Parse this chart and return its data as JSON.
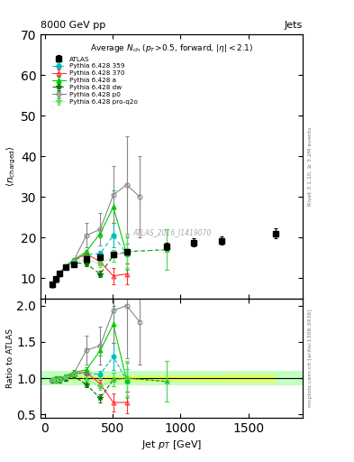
{
  "title_top_left": "8000 GeV pp",
  "title_top_right": "Jets",
  "main_title_line1": "Average N",
  "main_title_sub": "ch",
  "main_title_line2": " (p_{T}>0.5, forward, |\\eta| < 2.1)",
  "xlabel": "Jet p_{T} [GeV]",
  "ylabel_main": "\\langle n_{charged} \\rangle",
  "ylabel_ratio": "Ratio to ATLAS",
  "right_label1": "Rivet 3.1.10, \\geq 3.2M events",
  "right_label2": "mcplots.cern.ch [arXiv:1306.3436]",
  "watermark": "ATLAS_2016_I1419070",
  "atlas_x": [
    57,
    80,
    107,
    155,
    212,
    306,
    408,
    505,
    603,
    900,
    1100,
    1300,
    1700
  ],
  "atlas_y": [
    8.5,
    9.8,
    11.2,
    12.6,
    13.4,
    14.8,
    15.2,
    15.8,
    16.5,
    17.8,
    18.8,
    19.2,
    21.0
  ],
  "atlas_yerr": [
    0.3,
    0.3,
    0.4,
    0.4,
    0.4,
    0.5,
    0.5,
    0.6,
    0.7,
    0.8,
    0.9,
    1.0,
    1.2
  ],
  "p359_x": [
    57,
    80,
    107,
    155,
    212,
    306,
    408,
    505,
    603
  ],
  "p359_y": [
    8.2,
    9.5,
    11.0,
    12.8,
    14.2,
    15.8,
    16.0,
    20.5,
    16.0
  ],
  "p359_yerr": [
    0.15,
    0.2,
    0.25,
    0.3,
    0.35,
    0.5,
    0.8,
    3.0,
    2.5
  ],
  "p370_x": [
    57,
    80,
    107,
    155,
    212,
    306,
    408,
    505,
    603
  ],
  "p370_y": [
    8.3,
    9.6,
    11.1,
    12.9,
    14.3,
    16.0,
    14.0,
    10.5,
    11.0
  ],
  "p370_yerr": [
    0.15,
    0.2,
    0.25,
    0.3,
    0.35,
    0.5,
    0.8,
    2.0,
    2.5
  ],
  "pa_x": [
    57,
    80,
    107,
    155,
    212,
    306,
    408,
    505,
    603
  ],
  "pa_y": [
    8.4,
    9.8,
    11.2,
    13.0,
    14.5,
    16.5,
    21.0,
    27.5,
    16.0
  ],
  "pa_yerr": [
    0.15,
    0.2,
    0.25,
    0.3,
    0.35,
    0.5,
    1.0,
    4.0,
    4.0
  ],
  "pdw_x": [
    57,
    80,
    107,
    155,
    212,
    306,
    408,
    505,
    603,
    900
  ],
  "pdw_y": [
    8.2,
    9.4,
    10.8,
    12.5,
    13.8,
    13.5,
    11.0,
    15.5,
    16.5,
    17.0
  ],
  "pdw_yerr": [
    0.15,
    0.2,
    0.25,
    0.3,
    0.35,
    0.5,
    0.8,
    1.5,
    4.0,
    5.0
  ],
  "pp0_x": [
    57,
    80,
    107,
    155,
    212,
    306,
    408,
    505,
    603,
    700
  ],
  "pp0_y": [
    8.3,
    9.6,
    11.1,
    12.8,
    14.2,
    20.5,
    22.0,
    30.5,
    33.0,
    30.0
  ],
  "pp0_yerr": [
    0.15,
    0.2,
    0.25,
    0.3,
    0.4,
    3.0,
    4.0,
    7.0,
    12.0,
    10.0
  ],
  "ppro_x": [
    57,
    80,
    107,
    155,
    212,
    306,
    408,
    505,
    603,
    900
  ],
  "ppro_y": [
    8.3,
    9.5,
    11.0,
    12.7,
    14.0,
    14.5,
    13.5,
    15.5,
    16.5,
    17.0
  ],
  "ppro_yerr": [
    0.15,
    0.2,
    0.25,
    0.3,
    0.35,
    0.5,
    0.8,
    1.5,
    4.0,
    5.0
  ],
  "ylim_main": [
    5,
    70
  ],
  "ylim_ratio": [
    0.45,
    2.1
  ],
  "xlim": [
    -30,
    1900
  ],
  "xticks": [
    0,
    500,
    1000,
    1500
  ],
  "yticks_main": [
    10,
    20,
    30,
    40,
    50,
    60,
    70
  ],
  "yticks_ratio": [
    0.5,
    1.0,
    1.5,
    2.0
  ],
  "colors": {
    "atlas": "#000000",
    "p359": "#00BBBB",
    "p370": "#FF3333",
    "pa": "#00CC00",
    "pdw": "#007700",
    "pp0": "#888888",
    "ppro": "#55DD55"
  },
  "yellow_band_color": "#FFFF00",
  "yellow_band_alpha": 0.5,
  "green_band_color": "#88FF88",
  "green_band_alpha": 0.5
}
